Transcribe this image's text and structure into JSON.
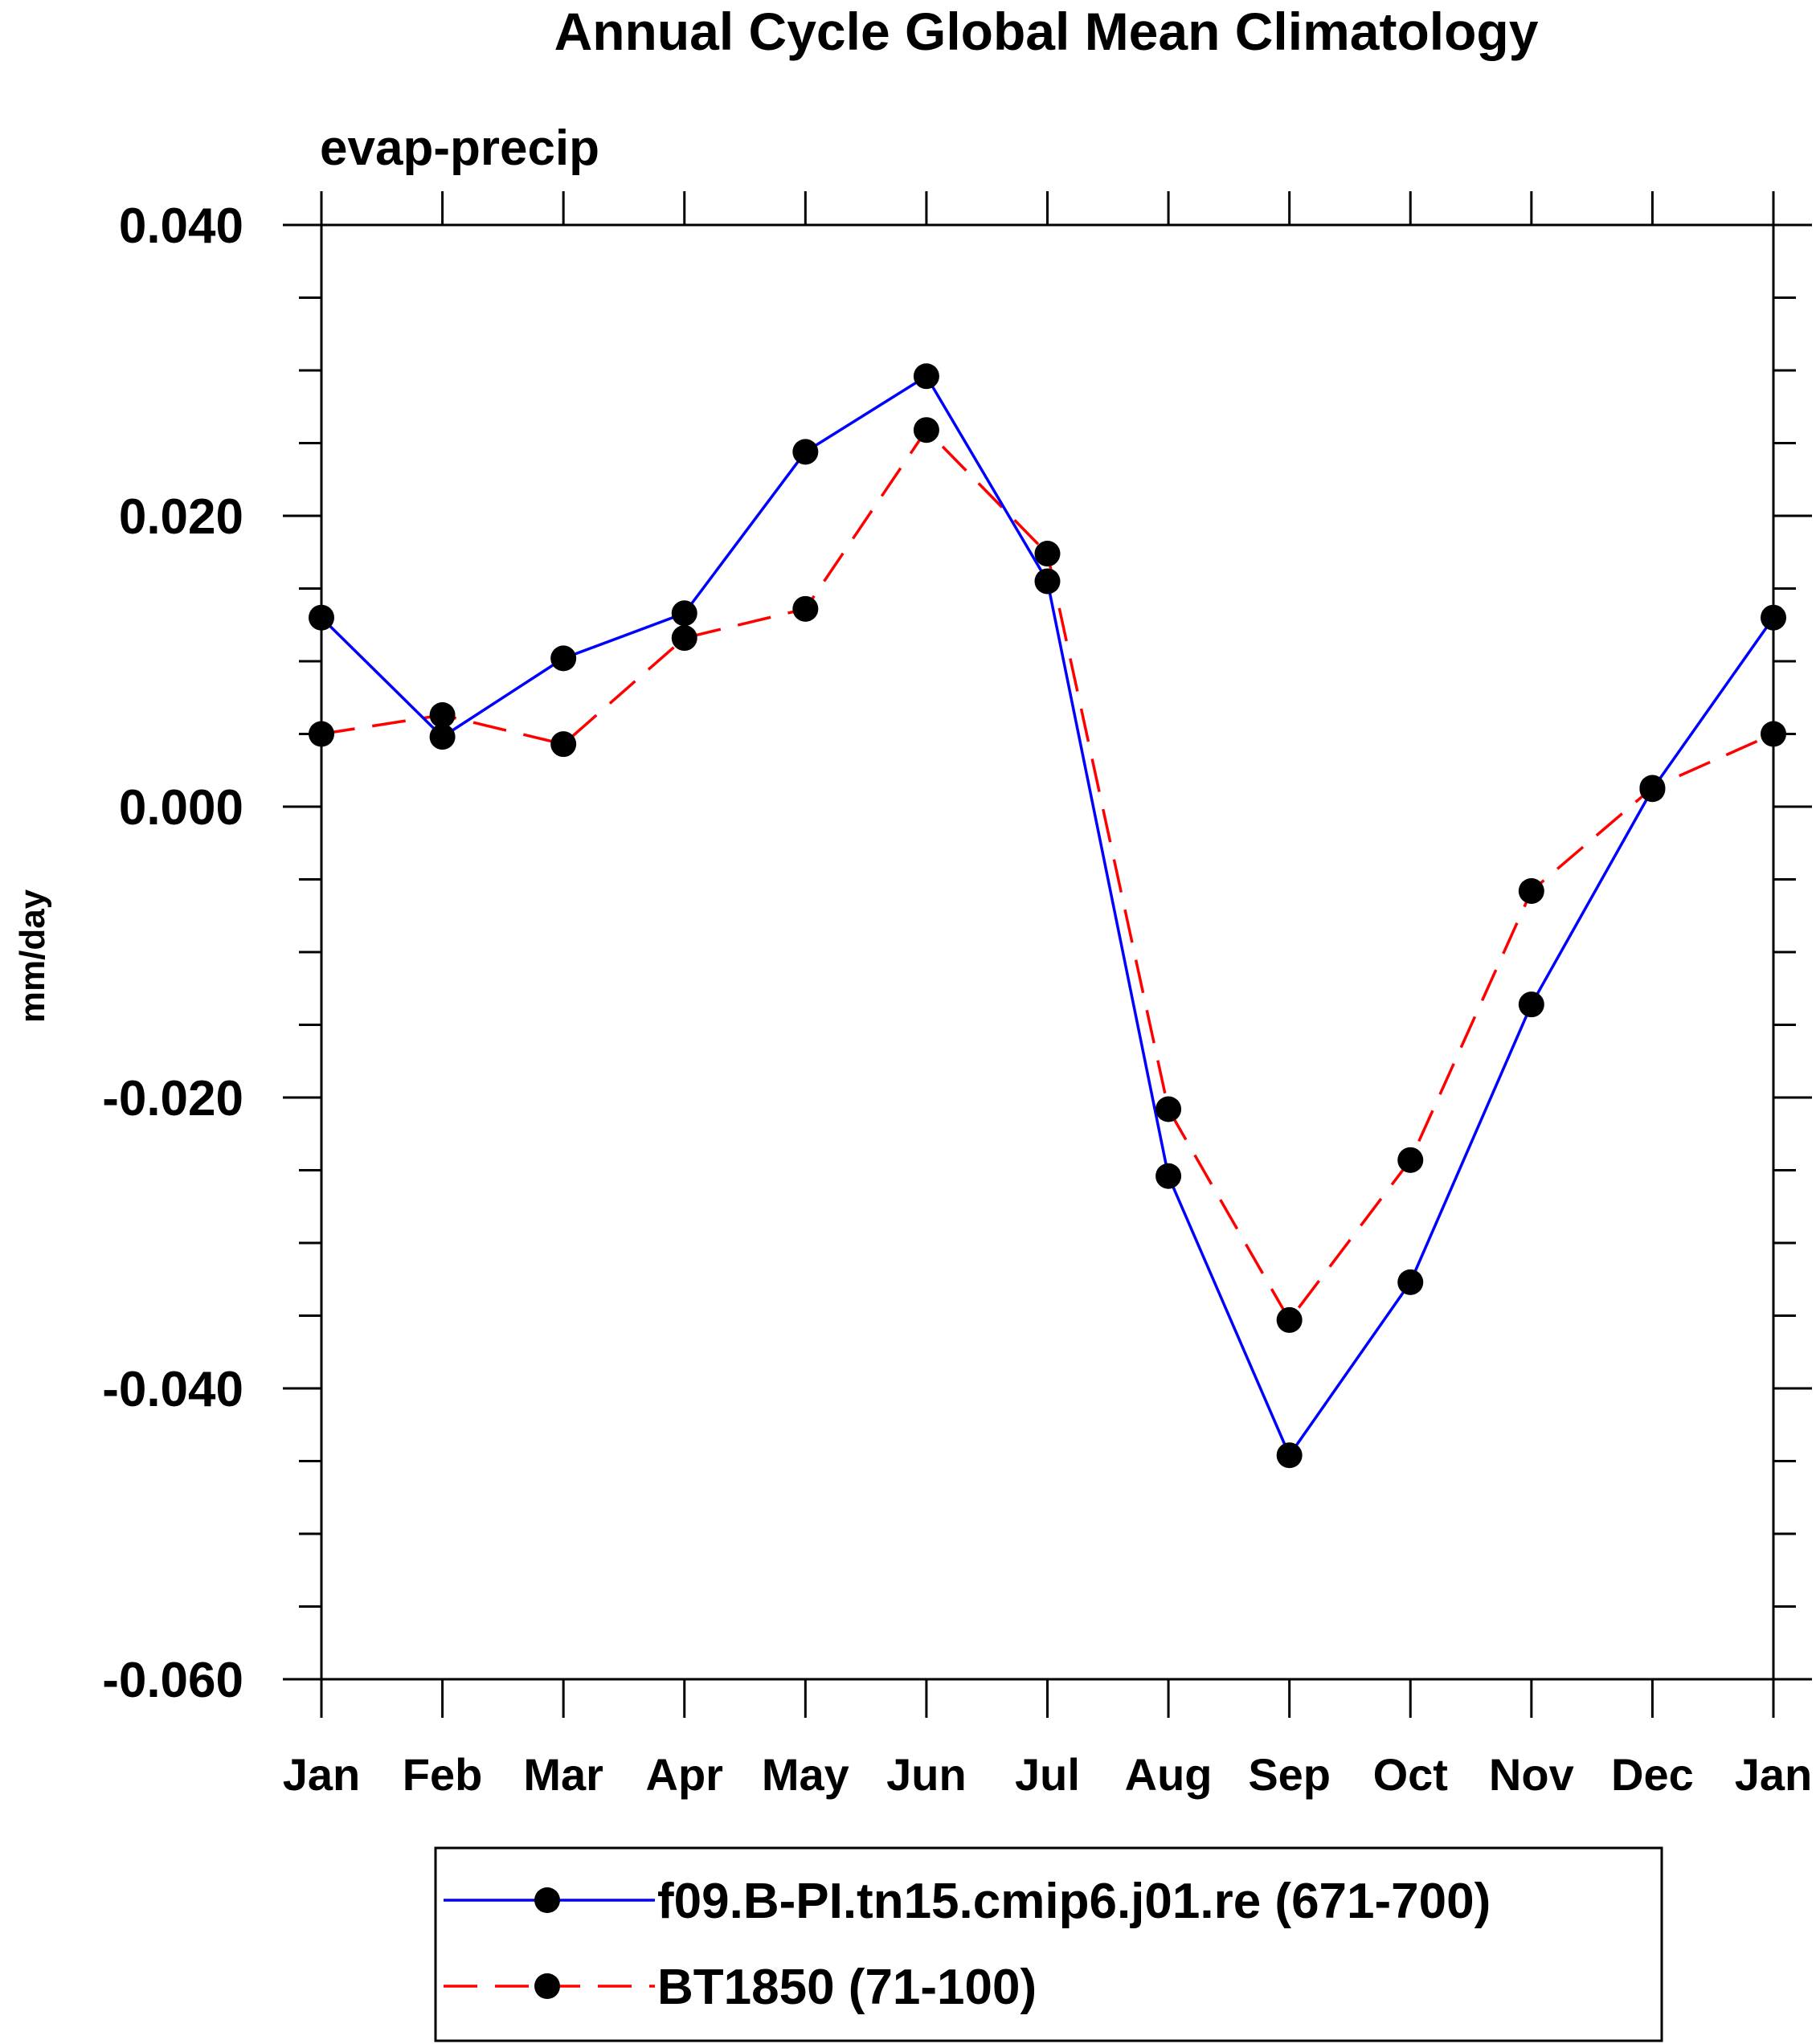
{
  "chart_data": {
    "type": "line",
    "title": "Annual Cycle Global Mean Climatology",
    "subtitle": "evap-precip",
    "ylabel": "mm/day",
    "xlabel": "",
    "categories": [
      "Jan",
      "Feb",
      "Mar",
      "Apr",
      "May",
      "Jun",
      "Jul",
      "Aug",
      "Sep",
      "Oct",
      "Nov",
      "Dec",
      "Jan"
    ],
    "ylim": [
      -0.06,
      0.04
    ],
    "yticks": [
      0.04,
      0.02,
      0.0,
      -0.02,
      -0.04,
      -0.06
    ],
    "ytick_labels": [
      "0.040",
      "0.020",
      "0.000",
      "-0.020",
      "-0.040",
      "-0.060"
    ],
    "grid": false,
    "legend_position": "bottom-center",
    "series": [
      {
        "name": "f09.B-PI.tn15.cmip6.j01.re (671-700)",
        "color": "#0000ff",
        "line_style": "solid",
        "marker": "filled-circle",
        "marker_color": "#000000",
        "values": [
          0.013,
          0.0048,
          0.0102,
          0.0133,
          0.0244,
          0.0296,
          0.0155,
          -0.0254,
          -0.0446,
          -0.0327,
          -0.0136,
          0.0012,
          0.013
        ]
      },
      {
        "name": "BT1850 (71-100)",
        "color": "#ff0000",
        "line_style": "dashed",
        "marker": "filled-circle",
        "marker_color": "#000000",
        "values": [
          0.005,
          0.0063,
          0.0043,
          0.0116,
          0.0136,
          0.0259,
          0.0174,
          -0.0208,
          -0.0353,
          -0.0243,
          -0.0058,
          0.0013,
          0.005
        ]
      }
    ]
  }
}
